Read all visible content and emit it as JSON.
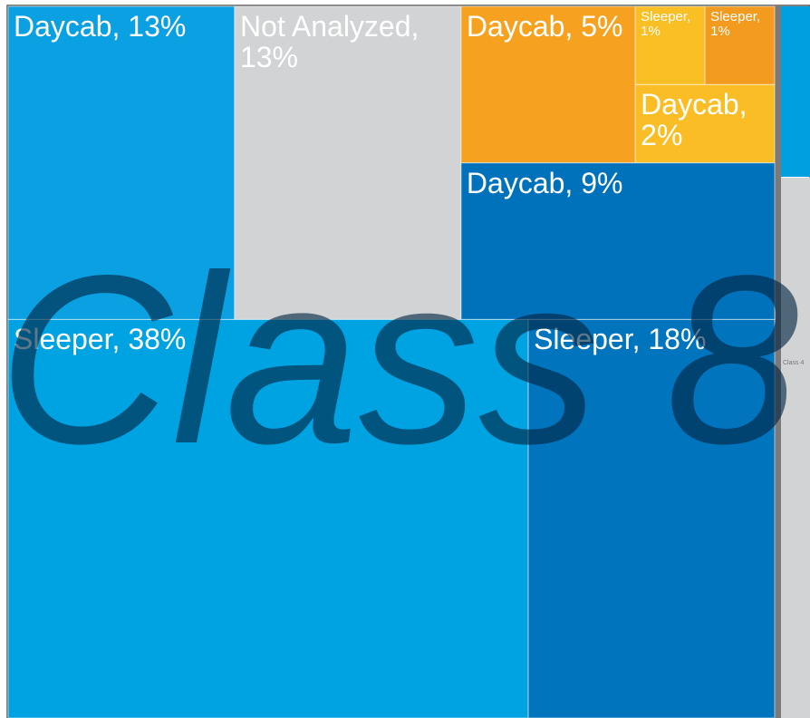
{
  "chart_data": {
    "type": "treemap",
    "group_labels": [
      "Class 8",
      "Class 4"
    ],
    "values": [
      13,
      13,
      5,
      1,
      1,
      2,
      9,
      38,
      18
    ],
    "value_labels": [
      "Daycab, 13%",
      "Not Analyzed, 13%",
      "Daycab, 5%",
      "Sleeper, 1%",
      "Sleeper, 1%",
      "Daycab, 2%",
      "Daycab, 9%",
      "Sleeper, 38%",
      "Sleeper, 18%"
    ],
    "colors": [
      "#0aa0e2",
      "#d1d3d5",
      "#f6a220",
      "#fbbf26",
      "#f39b1f",
      "#fbbd25",
      "#0072bc",
      "#00a3e2",
      "#0075be"
    ]
  }
}
